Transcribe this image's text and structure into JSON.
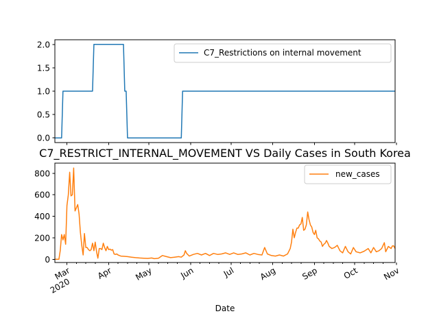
{
  "chart_data": [
    {
      "type": "line",
      "title": "",
      "xlabel": "",
      "ylabel": "",
      "legend_position": "upper-right",
      "x_range": [
        "2020-02-21",
        "2020-10-31"
      ],
      "ylim": [
        -0.1,
        2.1
      ],
      "yticks": [
        0.0,
        0.5,
        1.0,
        1.5,
        2.0
      ],
      "ytick_labels": [
        "0.0",
        "0.5",
        "1.0",
        "1.5",
        "2.0"
      ],
      "series": [
        {
          "name": "C7_Restrictions on internal movement",
          "color": "#1f77b4",
          "points": [
            [
              "2020-02-21",
              0
            ],
            [
              "2020-02-26",
              0
            ],
            [
              "2020-02-27",
              1
            ],
            [
              "2020-03-20",
              1
            ],
            [
              "2020-03-21",
              2
            ],
            [
              "2020-04-12",
              2
            ],
            [
              "2020-04-13",
              1
            ],
            [
              "2020-04-14",
              1
            ],
            [
              "2020-04-15",
              0
            ],
            [
              "2020-05-25",
              0
            ],
            [
              "2020-05-26",
              1
            ],
            [
              "2020-10-31",
              1
            ]
          ]
        }
      ]
    },
    {
      "type": "line",
      "title": "C7_RESTRICT_INTERNAL_MOVEMENT VS Daily Cases in South Korea",
      "xlabel": "Date",
      "ylabel": "",
      "legend_position": "upper-right",
      "x_range": [
        "2020-02-21",
        "2020-10-31"
      ],
      "ylim": [
        -30,
        895
      ],
      "yticks": [
        0,
        200,
        400,
        600,
        800
      ],
      "ytick_labels": [
        "0",
        "200",
        "400",
        "600",
        "800"
      ],
      "xticks": [
        {
          "date": "2020-03-01",
          "label": "Mar",
          "year": "2020"
        },
        {
          "date": "2020-04-01",
          "label": "Apr",
          "year": ""
        },
        {
          "date": "2020-05-01",
          "label": "May",
          "year": ""
        },
        {
          "date": "2020-06-01",
          "label": "Jun",
          "year": ""
        },
        {
          "date": "2020-07-01",
          "label": "Jul",
          "year": ""
        },
        {
          "date": "2020-08-01",
          "label": "Aug",
          "year": ""
        },
        {
          "date": "2020-09-01",
          "label": "Sep",
          "year": ""
        },
        {
          "date": "2020-10-01",
          "label": "Oct",
          "year": ""
        },
        {
          "date": "2020-11-01",
          "label": "Nov",
          "year": ""
        }
      ],
      "series": [
        {
          "name": "new_cases",
          "color": "#ff7f0e",
          "points": [
            [
              "2020-02-21",
              0
            ],
            [
              "2020-02-24",
              0
            ],
            [
              "2020-02-25",
              80
            ],
            [
              "2020-02-26",
              230
            ],
            [
              "2020-02-27",
              180
            ],
            [
              "2020-02-28",
              230
            ],
            [
              "2020-02-29",
              140
            ],
            [
              "2020-03-01",
              500
            ],
            [
              "2020-03-02",
              600
            ],
            [
              "2020-03-03",
              810
            ],
            [
              "2020-03-04",
              590
            ],
            [
              "2020-03-05",
              600
            ],
            [
              "2020-03-06",
              850
            ],
            [
              "2020-03-07",
              450
            ],
            [
              "2020-03-08",
              480
            ],
            [
              "2020-03-09",
              510
            ],
            [
              "2020-03-10",
              420
            ],
            [
              "2020-03-11",
              250
            ],
            [
              "2020-03-12",
              130
            ],
            [
              "2020-03-13",
              40
            ],
            [
              "2020-03-14",
              240
            ],
            [
              "2020-03-15",
              110
            ],
            [
              "2020-03-16",
              110
            ],
            [
              "2020-03-17",
              90
            ],
            [
              "2020-03-18",
              80
            ],
            [
              "2020-03-19",
              90
            ],
            [
              "2020-03-20",
              150
            ],
            [
              "2020-03-21",
              80
            ],
            [
              "2020-03-22",
              160
            ],
            [
              "2020-03-23",
              70
            ],
            [
              "2020-03-24",
              10
            ],
            [
              "2020-03-25",
              100
            ],
            [
              "2020-03-26",
              100
            ],
            [
              "2020-03-27",
              90
            ],
            [
              "2020-03-28",
              150
            ],
            [
              "2020-03-29",
              110
            ],
            [
              "2020-03-30",
              80
            ],
            [
              "2020-03-31",
              120
            ],
            [
              "2020-04-01",
              90
            ],
            [
              "2020-04-02",
              95
            ],
            [
              "2020-04-03",
              85
            ],
            [
              "2020-04-04",
              90
            ],
            [
              "2020-04-05",
              50
            ],
            [
              "2020-04-06",
              45
            ],
            [
              "2020-04-07",
              50
            ],
            [
              "2020-04-08",
              40
            ],
            [
              "2020-04-09",
              35
            ],
            [
              "2020-04-10",
              30
            ],
            [
              "2020-04-12",
              28
            ],
            [
              "2020-04-15",
              25
            ],
            [
              "2020-04-18",
              20
            ],
            [
              "2020-04-21",
              15
            ],
            [
              "2020-04-24",
              12
            ],
            [
              "2020-04-27",
              10
            ],
            [
              "2020-04-30",
              8
            ],
            [
              "2020-05-03",
              12
            ],
            [
              "2020-05-05",
              6
            ],
            [
              "2020-05-08",
              10
            ],
            [
              "2020-05-11",
              35
            ],
            [
              "2020-05-14",
              25
            ],
            [
              "2020-05-17",
              15
            ],
            [
              "2020-05-20",
              20
            ],
            [
              "2020-05-23",
              25
            ],
            [
              "2020-05-25",
              20
            ],
            [
              "2020-05-27",
              40
            ],
            [
              "2020-05-28",
              80
            ],
            [
              "2020-05-29",
              55
            ],
            [
              "2020-05-31",
              30
            ],
            [
              "2020-06-03",
              45
            ],
            [
              "2020-06-06",
              55
            ],
            [
              "2020-06-09",
              40
            ],
            [
              "2020-06-12",
              55
            ],
            [
              "2020-06-15",
              35
            ],
            [
              "2020-06-18",
              55
            ],
            [
              "2020-06-21",
              45
            ],
            [
              "2020-06-24",
              50
            ],
            [
              "2020-06-27",
              60
            ],
            [
              "2020-06-30",
              45
            ],
            [
              "2020-07-03",
              60
            ],
            [
              "2020-07-06",
              45
            ],
            [
              "2020-07-09",
              50
            ],
            [
              "2020-07-12",
              60
            ],
            [
              "2020-07-15",
              40
            ],
            [
              "2020-07-18",
              55
            ],
            [
              "2020-07-21",
              45
            ],
            [
              "2020-07-24",
              40
            ],
            [
              "2020-07-26",
              110
            ],
            [
              "2020-07-28",
              50
            ],
            [
              "2020-07-31",
              35
            ],
            [
              "2020-08-03",
              30
            ],
            [
              "2020-08-06",
              40
            ],
            [
              "2020-08-09",
              30
            ],
            [
              "2020-08-12",
              50
            ],
            [
              "2020-08-14",
              100
            ],
            [
              "2020-08-15",
              160
            ],
            [
              "2020-08-16",
              280
            ],
            [
              "2020-08-17",
              200
            ],
            [
              "2020-08-18",
              250
            ],
            [
              "2020-08-19",
              290
            ],
            [
              "2020-08-20",
              290
            ],
            [
              "2020-08-21",
              320
            ],
            [
              "2020-08-22",
              330
            ],
            [
              "2020-08-23",
              390
            ],
            [
              "2020-08-24",
              270
            ],
            [
              "2020-08-25",
              280
            ],
            [
              "2020-08-26",
              320
            ],
            [
              "2020-08-27",
              440
            ],
            [
              "2020-08-28",
              370
            ],
            [
              "2020-08-29",
              320
            ],
            [
              "2020-08-30",
              300
            ],
            [
              "2020-08-31",
              250
            ],
            [
              "2020-09-01",
              230
            ],
            [
              "2020-09-02",
              270
            ],
            [
              "2020-09-03",
              200
            ],
            [
              "2020-09-04",
              190
            ],
            [
              "2020-09-05",
              170
            ],
            [
              "2020-09-06",
              160
            ],
            [
              "2020-09-07",
              120
            ],
            [
              "2020-09-08",
              140
            ],
            [
              "2020-09-09",
              150
            ],
            [
              "2020-09-10",
              175
            ],
            [
              "2020-09-11",
              150
            ],
            [
              "2020-09-12",
              120
            ],
            [
              "2020-09-14",
              100
            ],
            [
              "2020-09-16",
              110
            ],
            [
              "2020-09-18",
              130
            ],
            [
              "2020-09-20",
              80
            ],
            [
              "2020-09-22",
              60
            ],
            [
              "2020-09-24",
              120
            ],
            [
              "2020-09-26",
              70
            ],
            [
              "2020-09-28",
              50
            ],
            [
              "2020-09-30",
              110
            ],
            [
              "2020-10-02",
              70
            ],
            [
              "2020-10-05",
              60
            ],
            [
              "2020-10-08",
              75
            ],
            [
              "2020-10-11",
              100
            ],
            [
              "2020-10-13",
              60
            ],
            [
              "2020-10-15",
              110
            ],
            [
              "2020-10-17",
              70
            ],
            [
              "2020-10-19",
              80
            ],
            [
              "2020-10-21",
              100
            ],
            [
              "2020-10-23",
              155
            ],
            [
              "2020-10-24",
              70
            ],
            [
              "2020-10-26",
              120
            ],
            [
              "2020-10-28",
              100
            ],
            [
              "2020-10-29",
              125
            ],
            [
              "2020-10-30",
              125
            ],
            [
              "2020-10-31",
              100
            ]
          ]
        }
      ]
    }
  ]
}
